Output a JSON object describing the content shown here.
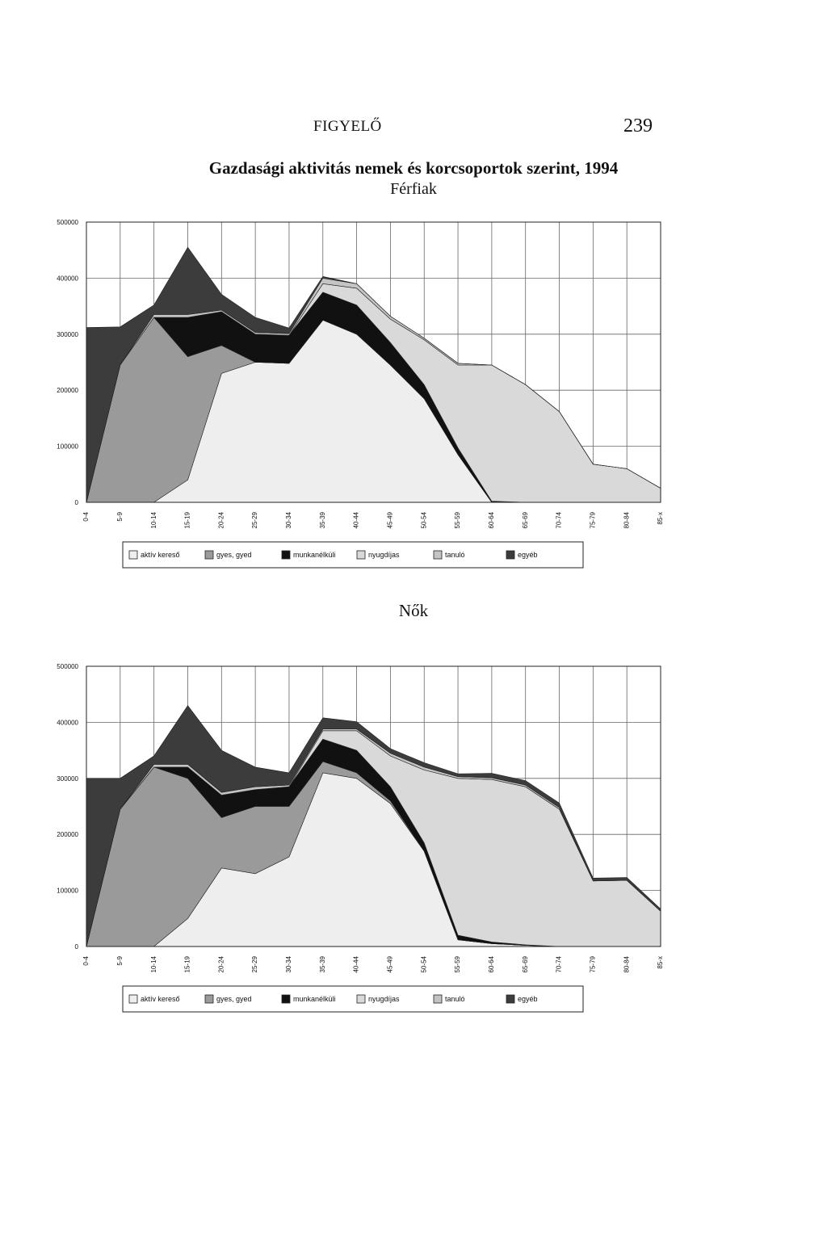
{
  "header": {
    "running_head": "FIGYELŐ",
    "page_number": "239"
  },
  "chart_data": [
    {
      "type": "area",
      "stacked": true,
      "title": "Gazdasági aktivitás nemek és korcsoportok szerint, 1994",
      "subtitle": "Férfiak",
      "categories": [
        "0-4",
        "5-9",
        "10-14",
        "15-19",
        "20-24",
        "25-29",
        "30-34",
        "35-39",
        "40-44",
        "45-49",
        "50-54",
        "55-59",
        "60-64",
        "65-69",
        "70-74",
        "75-79",
        "80-84",
        "85-x"
      ],
      "ylim": [
        0,
        500000
      ],
      "yticks": [
        "0",
        "100000",
        "200000",
        "300000",
        "400000",
        "500000"
      ],
      "grid": true,
      "legend_position": "bottom",
      "series": [
        {
          "name": "aktív kereső",
          "color": "#eeeeee",
          "values": [
            0,
            0,
            0,
            40000,
            230000,
            250000,
            248000,
            325000,
            300000,
            245000,
            185000,
            85000,
            0,
            0,
            0,
            0,
            0,
            0
          ]
        },
        {
          "name": "gyes, gyed",
          "color": "#9a9a9a",
          "values": [
            0,
            245000,
            330000,
            220000,
            50000,
            0,
            0,
            0,
            0,
            0,
            0,
            0,
            0,
            0,
            0,
            0,
            0,
            0
          ]
        },
        {
          "name": "munkanélküli",
          "color": "#111111",
          "values": [
            0,
            0,
            0,
            70000,
            60000,
            50000,
            50000,
            50000,
            52000,
            40000,
            25000,
            12000,
            2000,
            0,
            0,
            0,
            0,
            0
          ]
        },
        {
          "name": "nyugdíjas",
          "color": "#d9d9d9",
          "values": [
            0,
            0,
            0,
            0,
            0,
            0,
            0,
            15000,
            30000,
            42000,
            80000,
            148000,
            243000,
            210000,
            162000,
            68000,
            60000,
            25000
          ]
        },
        {
          "name": "tanuló",
          "color": "#c4c4c4",
          "values": [
            0,
            0,
            5000,
            5000,
            3000,
            3000,
            3000,
            10000,
            8000,
            5000,
            3000,
            3000,
            0,
            0,
            0,
            0,
            0,
            0
          ]
        },
        {
          "name": "egyéb",
          "color": "#3c3c3c",
          "values": [
            312000,
            68000,
            17000,
            120000,
            28000,
            27000,
            10000,
            3000,
            0,
            0,
            0,
            0,
            0,
            0,
            0,
            0,
            0,
            0
          ]
        }
      ]
    },
    {
      "type": "area",
      "stacked": true,
      "subtitle": "Nők",
      "categories": [
        "0-4",
        "5-9",
        "10-14",
        "15-19",
        "20-24",
        "25-29",
        "30-34",
        "35-39",
        "40-44",
        "45-49",
        "50-54",
        "55-59",
        "60-64",
        "65-69",
        "70-74",
        "75-79",
        "80-84",
        "85-x"
      ],
      "ylim": [
        0,
        500000
      ],
      "yticks": [
        "0",
        "100000",
        "200000",
        "300000",
        "400000",
        "500000"
      ],
      "grid": true,
      "legend_position": "bottom",
      "series": [
        {
          "name": "aktív kereső",
          "color": "#eeeeee",
          "values": [
            0,
            0,
            0,
            50000,
            140000,
            130000,
            160000,
            310000,
            300000,
            255000,
            170000,
            12000,
            5000,
            2000,
            0,
            0,
            0,
            0
          ]
        },
        {
          "name": "gyes, gyed",
          "color": "#9a9a9a",
          "values": [
            0,
            245000,
            320000,
            250000,
            90000,
            120000,
            90000,
            20000,
            10000,
            5000,
            0,
            0,
            0,
            0,
            0,
            0,
            0,
            0
          ]
        },
        {
          "name": "munkanélküli",
          "color": "#111111",
          "values": [
            0,
            0,
            0,
            20000,
            40000,
            30000,
            35000,
            40000,
            40000,
            25000,
            15000,
            8000,
            3000,
            1000,
            0,
            0,
            0,
            0
          ]
        },
        {
          "name": "nyugdíjas",
          "color": "#d9d9d9",
          "values": [
            0,
            0,
            0,
            0,
            0,
            0,
            0,
            15000,
            35000,
            55000,
            130000,
            280000,
            290000,
            282000,
            245000,
            117000,
            118000,
            63000
          ]
        },
        {
          "name": "tanuló",
          "color": "#c4c4c4",
          "values": [
            0,
            0,
            5000,
            5000,
            5000,
            5000,
            3000,
            3000,
            3000,
            5000,
            5000,
            3000,
            3000,
            3000,
            3000,
            0,
            0,
            0
          ]
        },
        {
          "name": "egyéb",
          "color": "#3c3c3c",
          "values": [
            300000,
            55000,
            15000,
            105000,
            75000,
            35000,
            22000,
            20000,
            13000,
            8000,
            8000,
            5000,
            8000,
            8000,
            8000,
            5000,
            5000,
            4000
          ]
        }
      ]
    }
  ]
}
